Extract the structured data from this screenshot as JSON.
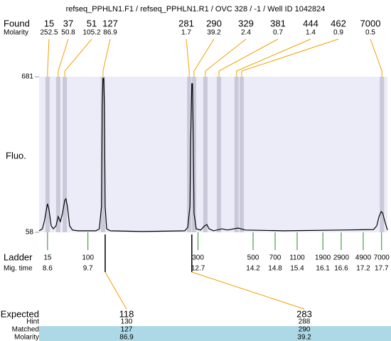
{
  "chart_data": {
    "type": "electropherogram",
    "title": "refseq_PPHLN1.F1 / refseq_PPHLN1.R1 / OVC 328 / -1 / Well ID 1042824",
    "found_label": "Found",
    "found_molarity_label": "Molarity",
    "y_label": "Fluo.",
    "ladder_label": "Ladder",
    "mig_time_label": "Mig. time",
    "expected_label": "Expected",
    "hint_label": "Hint",
    "matched_label": "Matched",
    "expected_molarity_label": "Molarity",
    "ylim": [
      58,
      681
    ],
    "yticks": [
      58,
      681
    ],
    "xlim": [
      8.37,
      17.86
    ],
    "plot_color": "#ececf8",
    "band_color": "#c9c9d9",
    "ladder_color": "#2a8a2a",
    "link_color": "#f0a000",
    "highlight_color": "#add8e6",
    "trace": {
      "color": "#000000",
      "x": [
        8.37,
        8.46,
        8.52,
        8.58,
        8.6,
        8.64,
        8.7,
        8.76,
        8.83,
        8.89,
        8.95,
        9.01,
        9.07,
        9.1,
        9.14,
        9.2,
        9.28,
        9.43,
        9.92,
        10.01,
        10.07,
        10.09,
        10.11,
        10.13,
        10.15,
        10.17,
        10.21,
        10.31,
        11.18,
        12.34,
        12.42,
        12.48,
        12.5,
        12.53,
        12.55,
        12.57,
        12.59,
        12.65,
        12.77,
        12.88,
        12.94,
        13.0,
        13.12,
        13.35,
        13.5,
        13.79,
        13.99,
        15.05,
        16.6,
        17.48,
        17.57,
        17.63,
        17.69,
        17.73,
        17.79,
        17.86
      ],
      "values": [
        64,
        72,
        106,
        158,
        172,
        149,
        84,
        72,
        84,
        121,
        101,
        135,
        186,
        192,
        163,
        84,
        67,
        64,
        64,
        72,
        163,
        562,
        675,
        675,
        562,
        163,
        72,
        64,
        61,
        64,
        78,
        163,
        419,
        653,
        653,
        419,
        135,
        72,
        67,
        84,
        89,
        72,
        64,
        72,
        67,
        75,
        67,
        64,
        67,
        69,
        84,
        121,
        141,
        135,
        101,
        67
      ]
    },
    "found": {
      "sizes": [
        15,
        37,
        51,
        127,
        281,
        290,
        329,
        381,
        444,
        462,
        7000
      ],
      "molarity": [
        252.5,
        50.8,
        105.2,
        86.9,
        1.7,
        39.2,
        2.4,
        0.7,
        1.4,
        0.9,
        0.5
      ],
      "x": [
        8.6,
        8.89,
        9.07,
        10.11,
        12.46,
        12.59,
        12.9,
        13.27,
        13.75,
        13.89,
        17.71
      ]
    },
    "ladder": {
      "sizes": [
        15,
        100,
        300,
        500,
        700,
        1100,
        1900,
        2900,
        4900,
        7000
      ],
      "mig_times": [
        8.6,
        9.7,
        12.7,
        14.2,
        14.8,
        15.4,
        16.1,
        16.6,
        17.2,
        17.7
      ]
    },
    "expected": {
      "sizes": [
        118,
        283
      ],
      "hint": [
        130,
        288
      ],
      "matched": [
        127,
        290
      ],
      "molarity": [
        86.9,
        39.2
      ],
      "x": [
        10.17,
        12.53
      ]
    }
  }
}
